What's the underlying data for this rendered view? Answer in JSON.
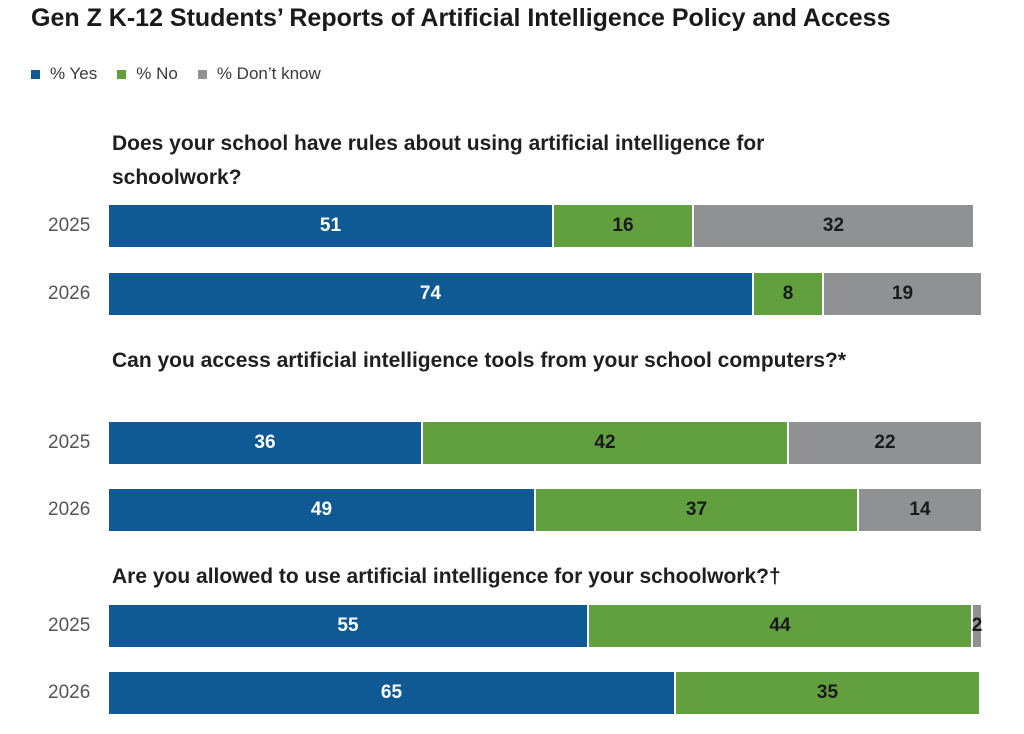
{
  "chart_data": {
    "type": "bar",
    "orientation": "horizontal-stacked",
    "title": "Gen Z K-12 Students’ Reports of Artificial Intelligence Policy and Access",
    "legend": [
      "% Yes",
      "% No",
      "% Don’t know"
    ],
    "legend_position": "top-left",
    "colors": {
      "yes": "#0f5a94",
      "no": "#62a03f",
      "dk": "#8f9192"
    },
    "xlim": [
      0,
      100
    ],
    "groups": [
      {
        "question": "Does your school have rules about using artificial intelligence for schoolwork?",
        "rows": [
          {
            "year": "2025",
            "yes": 51,
            "no": 16,
            "dk": 32
          },
          {
            "year": "2026",
            "yes": 74,
            "no": 8,
            "dk": 19
          }
        ]
      },
      {
        "question": "Can you access artificial intelligence tools from your school computers?*",
        "rows": [
          {
            "year": "2025",
            "yes": 36,
            "no": 42,
            "dk": 22
          },
          {
            "year": "2026",
            "yes": 49,
            "no": 37,
            "dk": 14
          }
        ]
      },
      {
        "question": "Are you allowed to use artificial intelligence for your schoolwork?†",
        "rows": [
          {
            "year": "2025",
            "yes": 55,
            "no": 44,
            "dk": 2
          },
          {
            "year": "2026",
            "yes": 65,
            "no": 35,
            "dk": 1,
            "dk_label": ""
          }
        ]
      }
    ]
  }
}
